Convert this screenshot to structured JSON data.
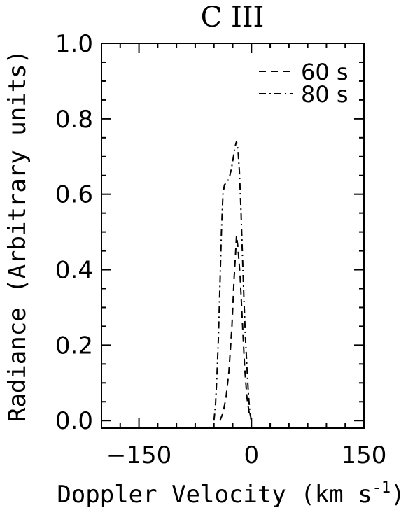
{
  "chart_data": {
    "type": "line",
    "title": "C III",
    "xlabel": "Doppler Velocity (km s",
    "xlabel_sup": "-1",
    "xlabel_close": ")",
    "ylabel": "Radiance (Arbitrary units)",
    "xlim": [
      -200,
      150
    ],
    "ylim": [
      -0.02,
      1.0
    ],
    "xticks": [
      {
        "value": -150,
        "label": "−150"
      },
      {
        "value": 0,
        "label": "0"
      },
      {
        "value": 150,
        "label": "150"
      }
    ],
    "yticks": [
      {
        "value": 0.0,
        "label": "0.0"
      },
      {
        "value": 0.2,
        "label": "0.2"
      },
      {
        "value": 0.4,
        "label": "0.4"
      },
      {
        "value": 0.6,
        "label": "0.6"
      },
      {
        "value": 0.8,
        "label": "0.8"
      },
      {
        "value": 1.0,
        "label": "1.0"
      }
    ],
    "legend_position": "top-right",
    "grid": false,
    "series": [
      {
        "name": "60 s",
        "dash": "dashed",
        "color": "#000000",
        "x": [
          -42,
          -38,
          -34,
          -30,
          -26,
          -23,
          -21,
          -20,
          -18,
          -15,
          -12,
          -9,
          -6,
          -3,
          0
        ],
        "y": [
          0.0,
          0.02,
          0.06,
          0.13,
          0.25,
          0.38,
          0.45,
          0.49,
          0.46,
          0.38,
          0.26,
          0.14,
          0.06,
          0.02,
          0.0
        ]
      },
      {
        "name": "80 s",
        "dash": "dash-dot",
        "color": "#000000",
        "x": [
          -50,
          -48,
          -46,
          -44,
          -42,
          -40,
          -38,
          -36,
          -34,
          -30,
          -27,
          -24,
          -22,
          -20,
          -18,
          -16,
          -14,
          -12,
          -10,
          -8,
          -6,
          -4,
          -2,
          0
        ],
        "y": [
          0.0,
          0.04,
          0.12,
          0.22,
          0.36,
          0.5,
          0.6,
          0.625,
          0.63,
          0.64,
          0.665,
          0.7,
          0.725,
          0.74,
          0.72,
          0.66,
          0.56,
          0.44,
          0.32,
          0.22,
          0.14,
          0.07,
          0.02,
          0.0
        ]
      }
    ]
  }
}
